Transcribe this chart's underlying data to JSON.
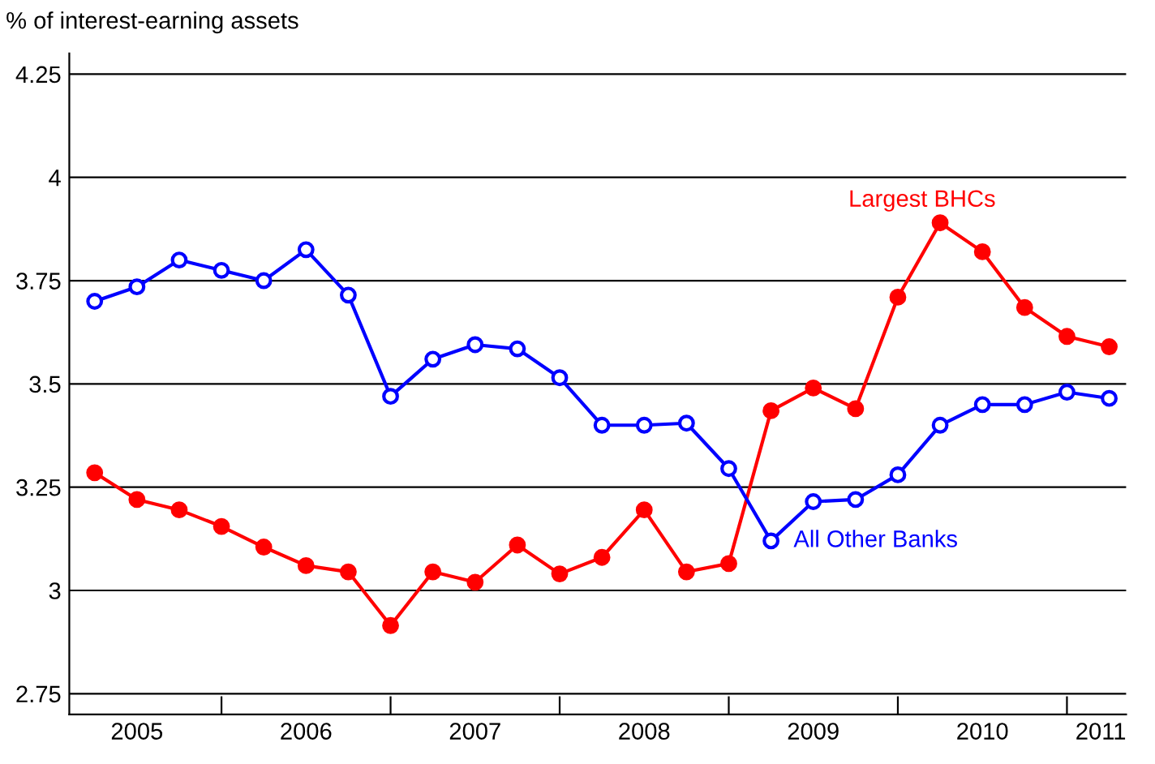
{
  "chart_data": {
    "type": "line",
    "ylabel": "% of interest-earning assets",
    "x": [
      2005.25,
      2005.5,
      2005.75,
      2006,
      2006.25,
      2006.5,
      2006.75,
      2007,
      2007.25,
      2007.5,
      2007.75,
      2008,
      2008.25,
      2008.5,
      2008.75,
      2009,
      2009.25,
      2009.5,
      2009.75,
      2010,
      2010.25,
      2010.5,
      2010.75,
      2011,
      2011.25
    ],
    "series": [
      {
        "name": "Largest BHCs",
        "color": "#ff0000",
        "values": [
          3.285,
          3.22,
          3.195,
          3.155,
          3.105,
          3.06,
          3.045,
          2.915,
          3.045,
          3.02,
          3.11,
          3.04,
          3.08,
          3.195,
          3.045,
          3.065,
          3.435,
          3.49,
          3.44,
          3.71,
          3.89,
          3.82,
          3.685,
          3.615,
          3.59
        ]
      },
      {
        "name": "All Other Banks",
        "color": "#0000ff",
        "values": [
          3.7,
          3.735,
          3.8,
          3.775,
          3.75,
          3.825,
          3.715,
          3.47,
          3.56,
          3.595,
          3.585,
          3.515,
          3.4,
          3.4,
          3.405,
          3.295,
          3.12,
          3.215,
          3.22,
          3.28,
          3.4,
          3.45,
          3.45,
          3.48,
          3.465
        ]
      }
    ],
    "xlim": [
      2005.1,
      2011.35
    ],
    "xticks": [
      {
        "value": 2005.5,
        "label": "2005"
      },
      {
        "value": 2006,
        "label": null
      },
      {
        "value": 2006.5,
        "label": "2006"
      },
      {
        "value": 2007,
        "label": null
      },
      {
        "value": 2007.5,
        "label": "2007"
      },
      {
        "value": 2008,
        "label": null
      },
      {
        "value": 2008.5,
        "label": "2008"
      },
      {
        "value": 2009,
        "label": null
      },
      {
        "value": 2009.5,
        "label": "2009"
      },
      {
        "value": 2010,
        "label": null
      },
      {
        "value": 2010.5,
        "label": "2010"
      },
      {
        "value": 2011,
        "label": null
      },
      {
        "value": 2011.2,
        "label": "2011"
      }
    ],
    "ylim": [
      2.7,
      4.3
    ],
    "yticks": [
      2.75,
      3,
      3.25,
      3.5,
      3.75,
      4,
      4.25
    ],
    "grid": "y",
    "legend": false,
    "marker": "circle",
    "line_style": "solid"
  }
}
